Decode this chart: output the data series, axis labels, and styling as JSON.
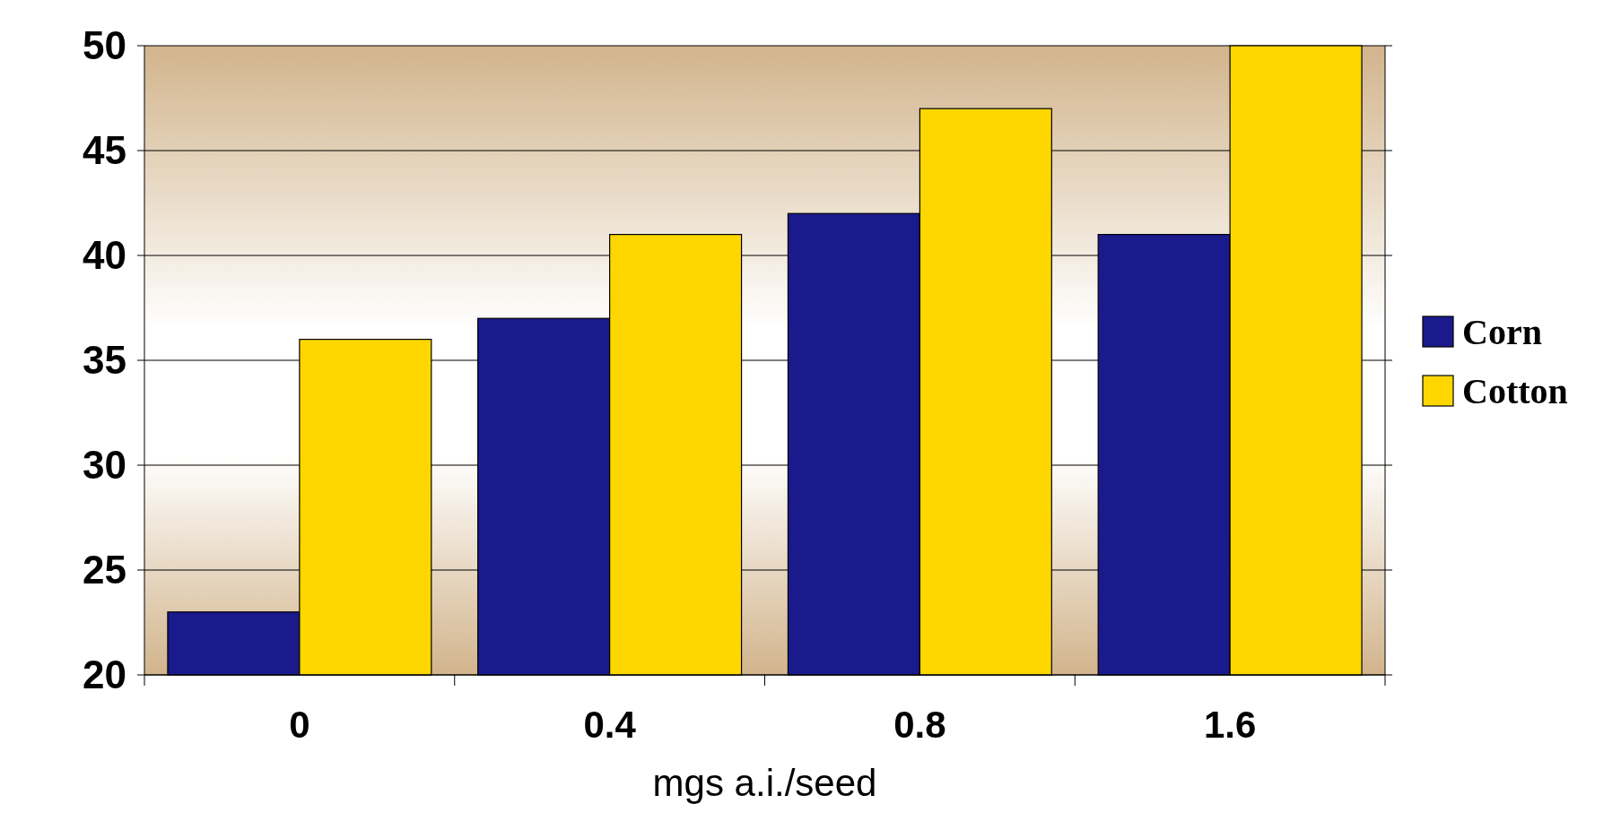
{
  "chart_data": {
    "type": "bar",
    "xlabel": "mgs a.i./seed",
    "categories": [
      "0",
      "0.4",
      "0.8",
      "1.6"
    ],
    "series": [
      {
        "name": "Corn",
        "color": "#1a1a8c",
        "values": [
          23,
          37,
          42,
          41
        ]
      },
      {
        "name": "Cotton",
        "color": "#ffd700",
        "values": [
          36,
          41,
          47,
          50
        ]
      }
    ],
    "ylim": [
      20,
      50
    ],
    "yticks": [
      20,
      25,
      30,
      35,
      40,
      45,
      50
    ],
    "grid": "y",
    "legend": "right"
  }
}
